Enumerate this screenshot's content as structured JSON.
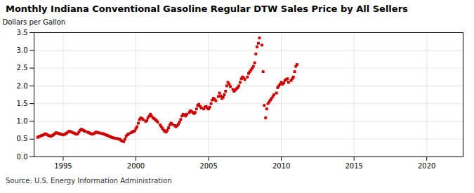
{
  "chart_data": {
    "type": "scatter",
    "title": "Monthly Indiana Conventional Gasoline Regular DTW Sales Price by All Sellers",
    "ylabel": "Dollars per Gallon",
    "annotation": "Source: U.S. Energy Information Administration",
    "color": "#cc0000",
    "marker": "square",
    "grid": true,
    "xlim": [
      1993.0,
      2022.5
    ],
    "ylim": [
      0.0,
      3.5
    ],
    "xticks": [
      1995,
      2000,
      2005,
      2010,
      2015,
      2020
    ],
    "yticks": [
      {
        "value": 0.0,
        "label": "0.0"
      },
      {
        "value": 0.5,
        "label": "0.5"
      },
      {
        "value": 1.0,
        "label": "1.0"
      },
      {
        "value": 1.5,
        "label": "1.5"
      },
      {
        "value": 2.0,
        "label": "2.0"
      },
      {
        "value": 2.5,
        "label": "2.5"
      },
      {
        "value": 3.0,
        "label": "3.0"
      },
      {
        "value": 3.5,
        "label": "3.5"
      }
    ],
    "x": [
      1993.25,
      1993.33,
      1993.42,
      1993.5,
      1993.58,
      1993.67,
      1993.75,
      1993.83,
      1993.92,
      1994.0,
      1994.08,
      1994.17,
      1994.25,
      1994.33,
      1994.42,
      1994.5,
      1994.58,
      1994.67,
      1994.75,
      1994.83,
      1994.92,
      1995.0,
      1995.08,
      1995.17,
      1995.25,
      1995.33,
      1995.42,
      1995.5,
      1995.58,
      1995.67,
      1995.75,
      1995.83,
      1995.92,
      1996.0,
      1996.08,
      1996.17,
      1996.25,
      1996.33,
      1996.42,
      1996.5,
      1996.67,
      1996.75,
      1996.83,
      1996.92,
      1997.0,
      1997.08,
      1997.17,
      1997.25,
      1997.33,
      1997.42,
      1997.5,
      1997.67,
      1997.75,
      1997.83,
      1997.92,
      1998.0,
      1998.08,
      1998.17,
      1998.25,
      1998.33,
      1998.42,
      1998.5,
      1998.67,
      1998.75,
      1998.83,
      1998.92,
      1999.0,
      1999.08,
      1999.17,
      1999.25,
      1999.33,
      1999.42,
      1999.5,
      1999.67,
      1999.75,
      1999.83,
      1999.92,
      2000.0,
      2000.08,
      2000.17,
      2000.25,
      2000.33,
      2000.42,
      2000.5,
      2000.67,
      2000.75,
      2000.83,
      2000.92,
      2001.0,
      2001.08,
      2001.17,
      2001.25,
      2001.33,
      2001.42,
      2001.5,
      2001.67,
      2001.75,
      2001.83,
      2001.92,
      2002.0,
      2002.08,
      2002.17,
      2002.25,
      2002.33,
      2002.42,
      2002.5,
      2002.67,
      2002.75,
      2002.83,
      2002.92,
      2003.0,
      2003.08,
      2003.17,
      2003.25,
      2003.33,
      2003.42,
      2003.5,
      2003.67,
      2003.75,
      2003.83,
      2003.92,
      2004.0,
      2004.08,
      2004.17,
      2004.25,
      2004.33,
      2004.42,
      2004.5,
      2004.67,
      2004.75,
      2004.83,
      2004.92,
      2005.0,
      2005.08,
      2005.17,
      2005.25,
      2005.33,
      2005.42,
      2005.5,
      2005.67,
      2005.75,
      2005.83,
      2005.92,
      2006.0,
      2006.08,
      2006.17,
      2006.25,
      2006.33,
      2006.42,
      2006.5,
      2006.67,
      2006.75,
      2006.83,
      2006.92,
      2007.0,
      2007.08,
      2007.17,
      2007.25,
      2007.33,
      2007.42,
      2007.5,
      2007.67,
      2007.75,
      2007.83,
      2007.92,
      2008.0,
      2008.08,
      2008.17,
      2008.25,
      2008.33,
      2008.42,
      2008.5,
      2008.67,
      2008.75,
      2008.83,
      2008.92,
      2009.0,
      2009.08,
      2009.17,
      2009.25,
      2009.33,
      2009.42,
      2009.5,
      2009.67,
      2009.75,
      2009.83,
      2009.92,
      2010.0,
      2010.08,
      2010.17,
      2010.25,
      2010.33,
      2010.42,
      2010.5,
      2010.67,
      2010.75,
      2010.83,
      2010.92,
      2011.0,
      2011.08
    ],
    "values": [
      0.55,
      0.57,
      0.58,
      0.6,
      0.61,
      0.62,
      0.65,
      0.64,
      0.62,
      0.6,
      0.59,
      0.58,
      0.6,
      0.62,
      0.65,
      0.68,
      0.67,
      0.66,
      0.65,
      0.64,
      0.63,
      0.62,
      0.63,
      0.65,
      0.67,
      0.7,
      0.72,
      0.71,
      0.7,
      0.68,
      0.67,
      0.65,
      0.64,
      0.65,
      0.7,
      0.75,
      0.78,
      0.76,
      0.74,
      0.72,
      0.7,
      0.68,
      0.67,
      0.65,
      0.64,
      0.65,
      0.67,
      0.7,
      0.69,
      0.68,
      0.67,
      0.66,
      0.65,
      0.64,
      0.62,
      0.61,
      0.6,
      0.58,
      0.57,
      0.55,
      0.54,
      0.53,
      0.52,
      0.51,
      0.5,
      0.49,
      0.46,
      0.44,
      0.43,
      0.5,
      0.58,
      0.62,
      0.65,
      0.68,
      0.7,
      0.72,
      0.73,
      0.8,
      0.85,
      0.95,
      1.05,
      1.1,
      1.08,
      1.05,
      1.0,
      1.02,
      1.1,
      1.15,
      1.2,
      1.15,
      1.1,
      1.08,
      1.05,
      1.02,
      0.98,
      0.9,
      0.85,
      0.8,
      0.75,
      0.72,
      0.7,
      0.75,
      0.82,
      0.9,
      0.95,
      0.92,
      0.88,
      0.85,
      0.88,
      0.92,
      0.98,
      1.05,
      1.15,
      1.2,
      1.18,
      1.15,
      1.2,
      1.25,
      1.3,
      1.28,
      1.25,
      1.22,
      1.25,
      1.35,
      1.45,
      1.48,
      1.42,
      1.38,
      1.35,
      1.4,
      1.42,
      1.38,
      1.35,
      1.4,
      1.5,
      1.6,
      1.65,
      1.62,
      1.58,
      1.7,
      1.8,
      1.72,
      1.65,
      1.68,
      1.75,
      1.85,
      2.0,
      2.1,
      2.05,
      1.98,
      1.9,
      1.85,
      1.88,
      1.92,
      1.95,
      2.0,
      2.1,
      2.2,
      2.25,
      2.22,
      2.18,
      2.25,
      2.35,
      2.4,
      2.45,
      2.5,
      2.55,
      2.65,
      2.9,
      3.1,
      3.2,
      3.35,
      3.15,
      2.4,
      1.45,
      1.1,
      1.35,
      1.5,
      1.55,
      1.6,
      1.65,
      1.7,
      1.75,
      1.8,
      1.95,
      2.0,
      2.05,
      2.1,
      2.05,
      2.08,
      2.15,
      2.18,
      2.2,
      2.1,
      2.15,
      2.2,
      2.25,
      2.4,
      2.55,
      2.6
    ]
  }
}
